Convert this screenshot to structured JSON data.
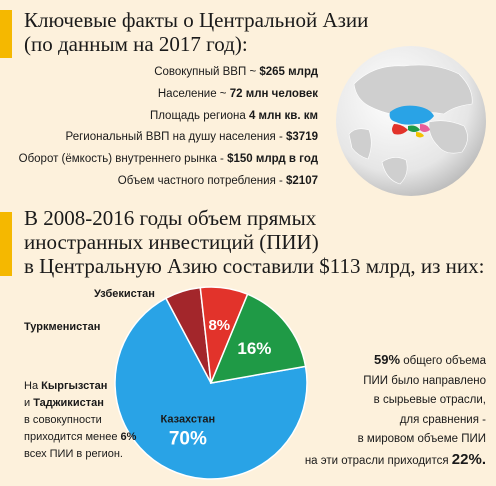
{
  "header": {
    "line1": "Ключевые факты о Центральной Азии",
    "line2": "(по данным на 2017 год):"
  },
  "facts": [
    {
      "label": "Совокупный ВВП ~ ",
      "value": "$265 млрд"
    },
    {
      "label": "Население ~ ",
      "value": "72 млн человек"
    },
    {
      "label": "Площадь региона ",
      "value": "4 млн кв. км"
    },
    {
      "label": "Региональный ВВП на душу населения - ",
      "value": "$3719"
    },
    {
      "label": "Оборот (ёмкость) внутреннего рынка - ",
      "value": "$150 млрд в год"
    },
    {
      "label": "Объем частного потребления - ",
      "value": "$2107"
    }
  ],
  "investment_header": {
    "line1": "В 2008-2016 годы объем прямых",
    "line2": "иностранных инвестиций (ПИИ)",
    "line3": "в Центральную Азию составили $113 млрд, из них:"
  },
  "chart_data": {
    "type": "pie",
    "slices": [
      {
        "name": "Казахстан",
        "value": 70,
        "label": "70%",
        "color": "#29a3e6"
      },
      {
        "name": "Узбекистан",
        "value": 16,
        "label": "16%",
        "color": "#1f9a46"
      },
      {
        "name": "Туркменистан",
        "value": 8,
        "label": "8%",
        "color": "#e2332b"
      },
      {
        "name": "Кыргызстан и Таджикистан",
        "value": 6,
        "label": "",
        "color": "#a3262b"
      }
    ]
  },
  "kg_note": {
    "l1a": "На ",
    "l1b": "Кыргызстан",
    "l2a": "и ",
    "l2b": "Таджикистан",
    "l3": "в совокупности",
    "l4a": "приходится менее ",
    "l4b": "6%",
    "l5": "всех ПИИ в регион."
  },
  "note": {
    "pct": "59%",
    "l1": " общего объема",
    "l2": "ПИИ было направлено",
    "l3": "в сырьевые отрасли,",
    "l4": "для сравнения -",
    "l5": "в мировом объеме ПИИ",
    "l6": "на эти отрасли приходится ",
    "pct2": "22%."
  },
  "colors": {
    "accent": "#f5b800",
    "background": "#fdf1dc"
  }
}
